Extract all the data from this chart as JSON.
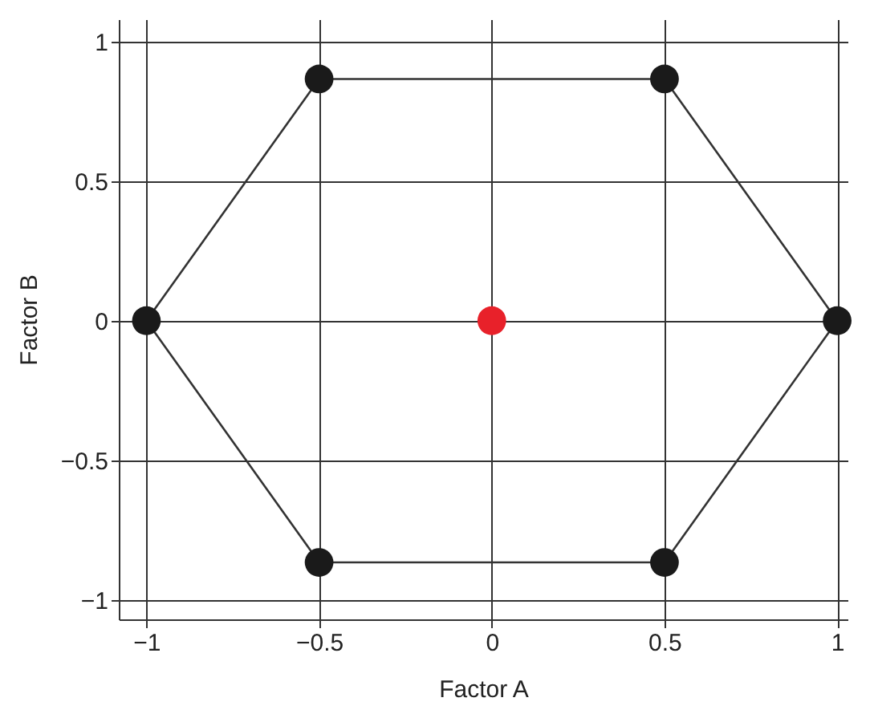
{
  "chart_data": {
    "type": "scatter",
    "xlabel": "Factor A",
    "ylabel": "Factor B",
    "xlim": [
      -1.08,
      1.03
    ],
    "ylim": [
      -1.07,
      1.08
    ],
    "xticks": [
      -1,
      -0.5,
      0,
      0.5,
      1
    ],
    "yticks": [
      -1,
      -0.5,
      0,
      0.5,
      1
    ],
    "grid": true,
    "series": [
      {
        "type": "line",
        "color": "#333333",
        "marker": "none",
        "x": [
          -1,
          -0.5,
          0.5,
          1
        ],
        "values": [
          0,
          0.866,
          0.866,
          0
        ]
      },
      {
        "type": "line",
        "color": "#333333",
        "marker": "none",
        "x": [
          -1,
          -0.5,
          0.5,
          1
        ],
        "values": [
          0,
          -0.866,
          -0.866,
          0
        ]
      },
      {
        "color": "#1a1a1a",
        "marker": "circle",
        "x": [
          -1,
          -0.5,
          0.5,
          1,
          0.5,
          -0.5
        ],
        "values": [
          0,
          0.866,
          0.866,
          0,
          -0.866,
          -0.866
        ]
      },
      {
        "color": "#e8212a",
        "marker": "circle",
        "x": [
          0
        ],
        "values": [
          0
        ]
      }
    ]
  }
}
